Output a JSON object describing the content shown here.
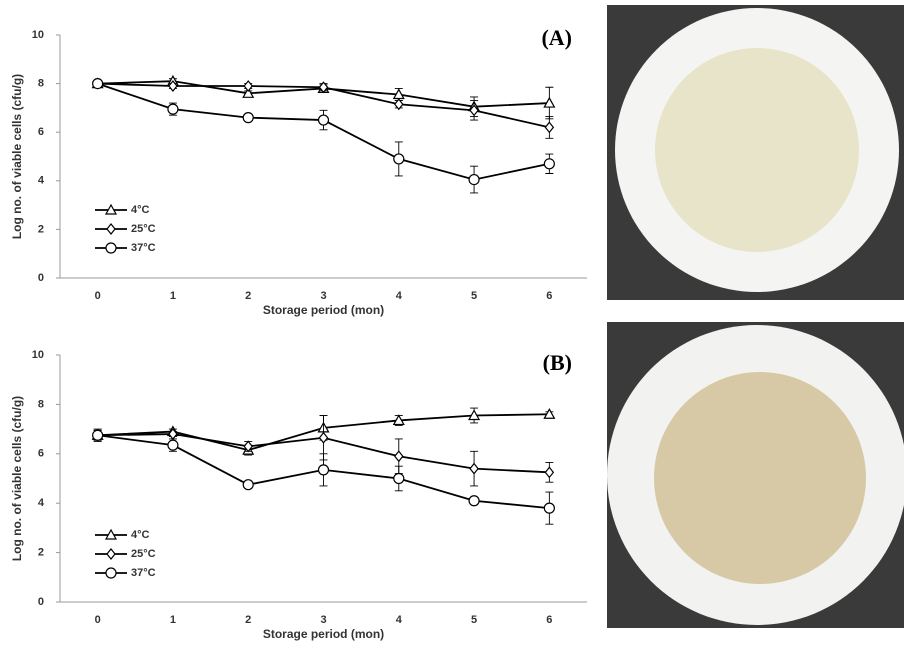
{
  "chart_data": [
    {
      "type": "line",
      "annotation": "(A)",
      "x_label": "Storage period (mon)",
      "y_label": "Log no. of viable cells (cfu/g)",
      "categories": [
        "0",
        "1",
        "2",
        "3",
        "4",
        "5",
        "6"
      ],
      "ylim": [
        0,
        10
      ],
      "yticks": [
        0,
        2,
        4,
        6,
        8,
        10
      ],
      "grid": false,
      "series": [
        {
          "name": "4°C",
          "color": "#000000",
          "marker": "triangle",
          "values": [
            8.0,
            8.1,
            7.6,
            7.8,
            7.55,
            7.05,
            7.2
          ],
          "errors": [
            0.05,
            0.1,
            0.1,
            0.15,
            0.25,
            0.4,
            0.65
          ]
        },
        {
          "name": "25°C",
          "color": "#000000",
          "marker": "diamond",
          "values": [
            8.0,
            7.9,
            7.9,
            7.85,
            7.15,
            6.9,
            6.2
          ],
          "errors": [
            0.05,
            0.1,
            0.1,
            0.15,
            0.15,
            0.4,
            0.45
          ]
        },
        {
          "name": "37°C",
          "color": "#000000",
          "marker": "circle",
          "values": [
            8.0,
            6.95,
            6.6,
            6.5,
            4.9,
            4.05,
            4.7
          ],
          "errors": [
            0.05,
            0.25,
            0.05,
            0.4,
            0.7,
            0.55,
            0.4
          ]
        }
      ]
    },
    {
      "type": "line",
      "annotation": "(B)",
      "x_label": "Storage period (mon)",
      "y_label": "Log no. of viable cells (cfu/g)",
      "categories": [
        "0",
        "1",
        "2",
        "3",
        "4",
        "5",
        "6"
      ],
      "ylim": [
        0,
        10
      ],
      "yticks": [
        0,
        2,
        4,
        6,
        8,
        10
      ],
      "grid": false,
      "series": [
        {
          "name": "4°C",
          "color": "#000000",
          "marker": "triangle",
          "values": [
            6.75,
            6.9,
            6.15,
            7.05,
            7.35,
            7.55,
            7.6
          ],
          "errors": [
            0.25,
            0.1,
            0.2,
            0.5,
            0.2,
            0.3,
            0.1
          ]
        },
        {
          "name": "25°C",
          "color": "#000000",
          "marker": "diamond",
          "values": [
            6.75,
            6.8,
            6.3,
            6.65,
            5.9,
            5.4,
            5.25
          ],
          "errors": [
            0.2,
            0.1,
            0.2,
            0.9,
            0.7,
            0.7,
            0.4
          ]
        },
        {
          "name": "37°C",
          "color": "#000000",
          "marker": "circle",
          "values": [
            6.75,
            6.35,
            4.75,
            5.35,
            5.0,
            4.1,
            3.8
          ],
          "errors": [
            0.2,
            0.25,
            0.05,
            0.65,
            0.5,
            0.05,
            0.65
          ]
        }
      ]
    }
  ]
}
